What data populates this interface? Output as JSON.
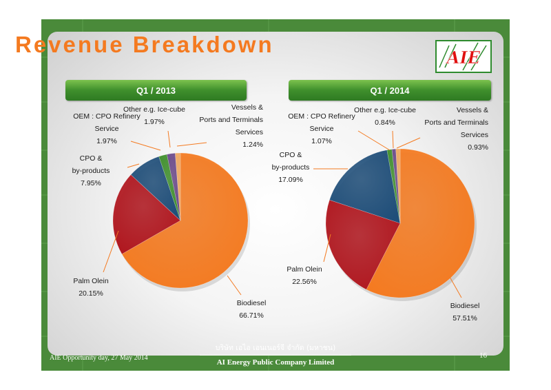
{
  "slide": {
    "title": "Revenue Breakdown",
    "logo_text": "AIE",
    "footer_left": "AIE Opportunity day, 27 May 2014",
    "footer_thai": "บริษัท เอไอ เอนเนอร์จี จำกัด (มหาชน)",
    "footer_company": "AI Energy Public Company Limited",
    "page_number": "16"
  },
  "colors": {
    "background_green": "#4a8a3a",
    "title_orange": "#f47a20",
    "Biodiesel": "#f47a20",
    "Palm Olein": "#b0161e",
    "CPO & by-products": "#1f4e79",
    "OEM : CPO Refinery Service": "#3f8f2c",
    "Other e.g. Ice-cube": "#6b4a8a",
    "Vessels & Ports and Terminals Services": "#f0a860"
  },
  "chart_data": [
    {
      "type": "pie",
      "title": "Q1 / 2013",
      "slices": [
        {
          "name": "Biodiesel",
          "value": 66.71,
          "label": "66.71%"
        },
        {
          "name": "Palm Olein",
          "value": 20.15,
          "label": "20.15%"
        },
        {
          "name": "CPO & by-products",
          "value": 7.95,
          "label": "7.95%"
        },
        {
          "name": "OEM : CPO Refinery Service",
          "value": 1.97,
          "label": "1.97%"
        },
        {
          "name": "Other e.g. Ice-cube",
          "value": 1.97,
          "label": "1.97%"
        },
        {
          "name": "Vessels & Ports and Terminals Services",
          "value": 1.24,
          "label": "1.24%"
        }
      ],
      "legend": "none",
      "labels": "outside with leader lines"
    },
    {
      "type": "pie",
      "title": "Q1 / 2014",
      "slices": [
        {
          "name": "Biodiesel",
          "value": 57.51,
          "label": "57.51%"
        },
        {
          "name": "Palm Olein",
          "value": 22.56,
          "label": "22.56%"
        },
        {
          "name": "CPO & by-products",
          "value": 17.09,
          "label": "17.09%"
        },
        {
          "name": "OEM : CPO Refinery Service",
          "value": 1.07,
          "label": "1.07%"
        },
        {
          "name": "Other e.g. Ice-cube",
          "value": 0.84,
          "label": "0.84%"
        },
        {
          "name": "Vessels & Ports and Terminals Services",
          "value": 0.93,
          "label": "0.93%"
        }
      ],
      "legend": "none",
      "labels": "outside with leader lines"
    }
  ]
}
